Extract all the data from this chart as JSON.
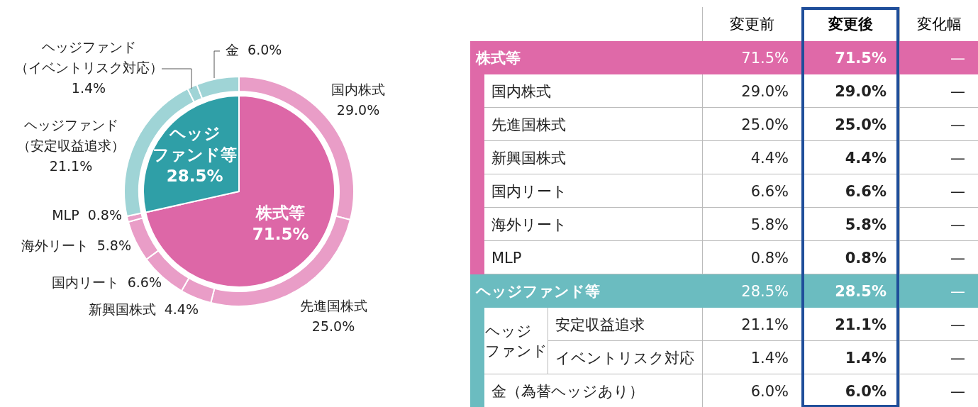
{
  "chart_data": [
    {
      "type": "pie",
      "categories": [
        "株式等",
        "ヘッジファンド等"
      ],
      "values": [
        71.5,
        28.5
      ],
      "value_labels": [
        "71.5%",
        "28.5%"
      ],
      "colors": [
        "#dd67a7",
        "#2f9fa7"
      ]
    },
    {
      "type": "donut",
      "categories": [
        "国内株式",
        "先進国株式",
        "新興国株式",
        "国内リート",
        "海外リート",
        "MLP",
        "ヘッジファンド（安定収益追求）",
        "ヘッジファンド（イベントリスク対応）",
        "金"
      ],
      "values": [
        29.0,
        25.0,
        4.4,
        6.6,
        5.8,
        0.8,
        21.1,
        1.4,
        6.0
      ],
      "value_labels": [
        "29.0%",
        "25.0%",
        "4.4%",
        "6.6%",
        "5.8%",
        "0.8%",
        "21.1%",
        "1.4%",
        "6.0%"
      ],
      "colors": [
        "#e99dc7",
        "#e99dc7",
        "#e99dc7",
        "#e99dc7",
        "#e99dc7",
        "#e99dc7",
        "#9fd4d6",
        "#9fd4d6",
        "#9fd4d6"
      ]
    },
    {
      "type": "other",
      "categories": [
        "株式等",
        "国内株式",
        "先進国株式",
        "新興国株式",
        "国内リート",
        "海外リート",
        "MLP",
        "ヘッジファンド等",
        "安定収益追求",
        "イベントリスク対応",
        "金（為替ヘッジあり）"
      ],
      "colors": [
        "#df69a8",
        null,
        null,
        null,
        null,
        null,
        null,
        "#6bbcc0",
        null,
        null,
        null
      ],
      "series": [
        {
          "name": "変更前",
          "values": [
            null,
            null,
            null,
            null,
            null,
            null,
            null,
            null,
            null,
            null,
            null
          ],
          "colors": [
            "#ffffff",
            "#222222",
            "#222222",
            "#222222",
            "#222222",
            "#222222",
            "#222222",
            "#ffffff",
            "#222222",
            "#222222",
            "#222222"
          ],
          "value_labels": [
            "71.5%",
            "29.0%",
            "25.0%",
            "4.4%",
            "6.6%",
            "5.8%",
            "0.8%",
            "28.5%",
            "21.1%",
            "1.4%",
            "6.0%"
          ]
        },
        {
          "name": "変更後",
          "values": [
            null,
            null,
            null,
            null,
            null,
            null,
            null,
            null,
            null,
            null,
            null
          ],
          "colors": [
            "#ffffff",
            "#222222",
            "#222222",
            "#222222",
            "#222222",
            "#222222",
            "#222222",
            "#ffffff",
            "#222222",
            "#222222",
            "#222222"
          ],
          "value_labels": [
            "71.5%",
            "29.0%",
            "25.0%",
            "4.4%",
            "6.6%",
            "5.8%",
            "0.8%",
            "28.5%",
            "21.1%",
            "1.4%",
            "6.0%"
          ]
        },
        {
          "name": "変化幅",
          "values": [
            null,
            null,
            null,
            null,
            null,
            null,
            null,
            null,
            null,
            null,
            null
          ],
          "colors": [
            "#ffffff",
            "#222222",
            "#222222",
            "#222222",
            "#222222",
            "#222222",
            "#222222",
            "#ffffff",
            "#222222",
            "#222222",
            "#222222"
          ],
          "value_labels": [
            "—",
            "—",
            "—",
            "—",
            "—",
            "—",
            "—",
            "—",
            "—",
            "—",
            "—"
          ]
        }
      ],
      "annotations": [
        "ヘッジファンド"
      ]
    }
  ]
}
